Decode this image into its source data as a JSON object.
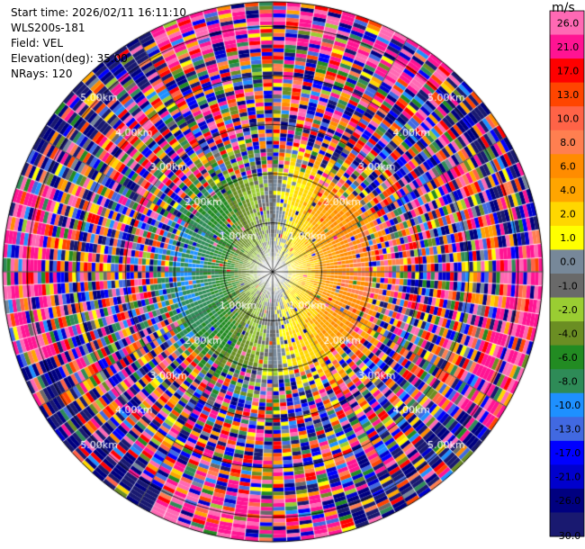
{
  "meta": {
    "start_time": "Start time: 2026/02/11 16:11:10",
    "instrument": "WLS200s-181",
    "field": "Field: VEL",
    "elevation": "Elevation(deg): 35.00",
    "nrays": "NRays: 120"
  },
  "chart_data": {
    "type": "heatmap",
    "projection": "polar PPI scan",
    "field": "VEL",
    "elevation_deg": 35.0,
    "n_rays": 120,
    "max_range_km": 5.5,
    "range_rings_km": [
      1.0,
      2.0,
      3.0,
      4.0,
      5.0
    ],
    "range_ring_labels": [
      "1.00km",
      "2.00km",
      "3.00km",
      "4.00km",
      "5.00km"
    ],
    "radial_spokes_every_deg": 30,
    "colorbar": {
      "unit": "m/s",
      "ticks": [
        "26.0",
        "21.0",
        "17.0",
        "13.0",
        "10.0",
        "8.0",
        "6.0",
        "4.0",
        "2.0",
        "1.0",
        "0.0",
        "-1.0",
        "-2.0",
        "-4.0",
        "-6.0",
        "-8.0",
        "-10.0",
        "-13.0",
        "-17.0",
        "-21.0",
        "-26.0",
        "-30.0"
      ],
      "bins": [
        {
          "min": -30,
          "max": -26,
          "color": "#191970"
        },
        {
          "min": -26,
          "max": -21,
          "color": "#000080"
        },
        {
          "min": -21,
          "max": -17,
          "color": "#0000cd"
        },
        {
          "min": -17,
          "max": -13,
          "color": "#0000ff"
        },
        {
          "min": -13,
          "max": -10,
          "color": "#4169e1"
        },
        {
          "min": -10,
          "max": -8,
          "color": "#1e90ff"
        },
        {
          "min": -8,
          "max": -6,
          "color": "#2e8b57"
        },
        {
          "min": -6,
          "max": -4,
          "color": "#228b22"
        },
        {
          "min": -4,
          "max": -2,
          "color": "#6b8e23"
        },
        {
          "min": -2,
          "max": -1,
          "color": "#9acd32"
        },
        {
          "min": -1,
          "max": 0,
          "color": "#696969"
        },
        {
          "min": 0,
          "max": 1,
          "color": "#778899"
        },
        {
          "min": 1,
          "max": 2,
          "color": "#ffff00"
        },
        {
          "min": 2,
          "max": 4,
          "color": "#ffd700"
        },
        {
          "min": 4,
          "max": 6,
          "color": "#ffa500"
        },
        {
          "min": 6,
          "max": 8,
          "color": "#ff8c00"
        },
        {
          "min": 8,
          "max": 10,
          "color": "#ff7f50"
        },
        {
          "min": 10,
          "max": 13,
          "color": "#ff6347"
        },
        {
          "min": 13,
          "max": 17,
          "color": "#ff4500"
        },
        {
          "min": 17,
          "max": 21,
          "color": "#ff0000"
        },
        {
          "min": 21,
          "max": 26,
          "color": "#ff1493"
        },
        {
          "min": 26,
          "max": 30,
          "color": "#ff69b4"
        }
      ]
    },
    "velocity_pattern": {
      "description_value_sign": "positive (receding) to the east, negative (approaching) to the west",
      "peak_positive_ms": 8,
      "peak_negative_ms": -8,
      "coherent_range_km": 2.0
    }
  }
}
